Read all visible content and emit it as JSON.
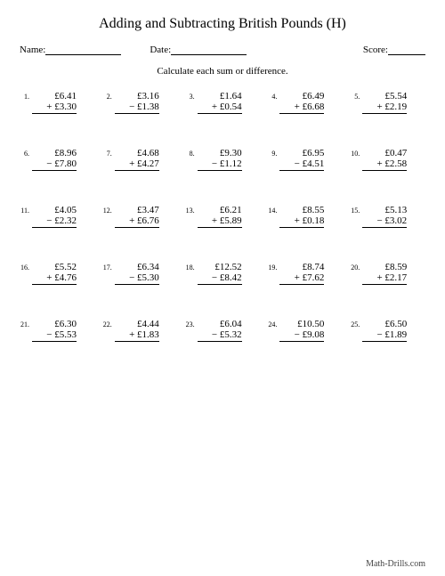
{
  "title": "Adding and Subtracting British Pounds (H)",
  "header": {
    "name_label": "Name:",
    "date_label": "Date:",
    "score_label": "Score:"
  },
  "instruction": "Calculate each sum or difference.",
  "currency": "£",
  "problems": [
    {
      "n": "1.",
      "a": "£6.41",
      "op": "+",
      "b": "£3.30"
    },
    {
      "n": "2.",
      "a": "£3.16",
      "op": "−",
      "b": "£1.38"
    },
    {
      "n": "3.",
      "a": "£1.64",
      "op": "+",
      "b": "£0.54"
    },
    {
      "n": "4.",
      "a": "£6.49",
      "op": "+",
      "b": "£6.68"
    },
    {
      "n": "5.",
      "a": "£5.54",
      "op": "+",
      "b": "£2.19"
    },
    {
      "n": "6.",
      "a": "£8.96",
      "op": "−",
      "b": "£7.80"
    },
    {
      "n": "7.",
      "a": "£4.68",
      "op": "+",
      "b": "£4.27"
    },
    {
      "n": "8.",
      "a": "£9.30",
      "op": "−",
      "b": "£1.12"
    },
    {
      "n": "9.",
      "a": "£6.95",
      "op": "−",
      "b": "£4.51"
    },
    {
      "n": "10.",
      "a": "£0.47",
      "op": "+",
      "b": "£2.58"
    },
    {
      "n": "11.",
      "a": "£4.05",
      "op": "−",
      "b": "£2.32"
    },
    {
      "n": "12.",
      "a": "£3.47",
      "op": "+",
      "b": "£6.76"
    },
    {
      "n": "13.",
      "a": "£6.21",
      "op": "+",
      "b": "£5.89"
    },
    {
      "n": "14.",
      "a": "£8.55",
      "op": "+",
      "b": "£0.18"
    },
    {
      "n": "15.",
      "a": "£5.13",
      "op": "−",
      "b": "£3.02"
    },
    {
      "n": "16.",
      "a": "£5.52",
      "op": "+",
      "b": "£4.76"
    },
    {
      "n": "17.",
      "a": "£6.34",
      "op": "−",
      "b": "£5.30"
    },
    {
      "n": "18.",
      "a": "£12.52",
      "op": "−",
      "b": "£8.42"
    },
    {
      "n": "19.",
      "a": "£8.74",
      "op": "+",
      "b": "£7.62"
    },
    {
      "n": "20.",
      "a": "£8.59",
      "op": "+",
      "b": "£2.17"
    },
    {
      "n": "21.",
      "a": "£6.30",
      "op": "−",
      "b": "£5.53"
    },
    {
      "n": "22.",
      "a": "£4.44",
      "op": "+",
      "b": "£1.83"
    },
    {
      "n": "23.",
      "a": "£6.04",
      "op": "−",
      "b": "£5.32"
    },
    {
      "n": "24.",
      "a": "£10.50",
      "op": "−",
      "b": "£9.08"
    },
    {
      "n": "25.",
      "a": "£6.50",
      "op": "−",
      "b": "£1.89"
    }
  ],
  "footer": "Math-Drills.com",
  "style": {
    "background_color": "#ffffff",
    "text_color": "#000000",
    "title_fontsize": 16,
    "body_fontsize": 11,
    "number_fontsize": 8,
    "font_family": "Times New Roman",
    "columns": 5,
    "rows": 5
  }
}
